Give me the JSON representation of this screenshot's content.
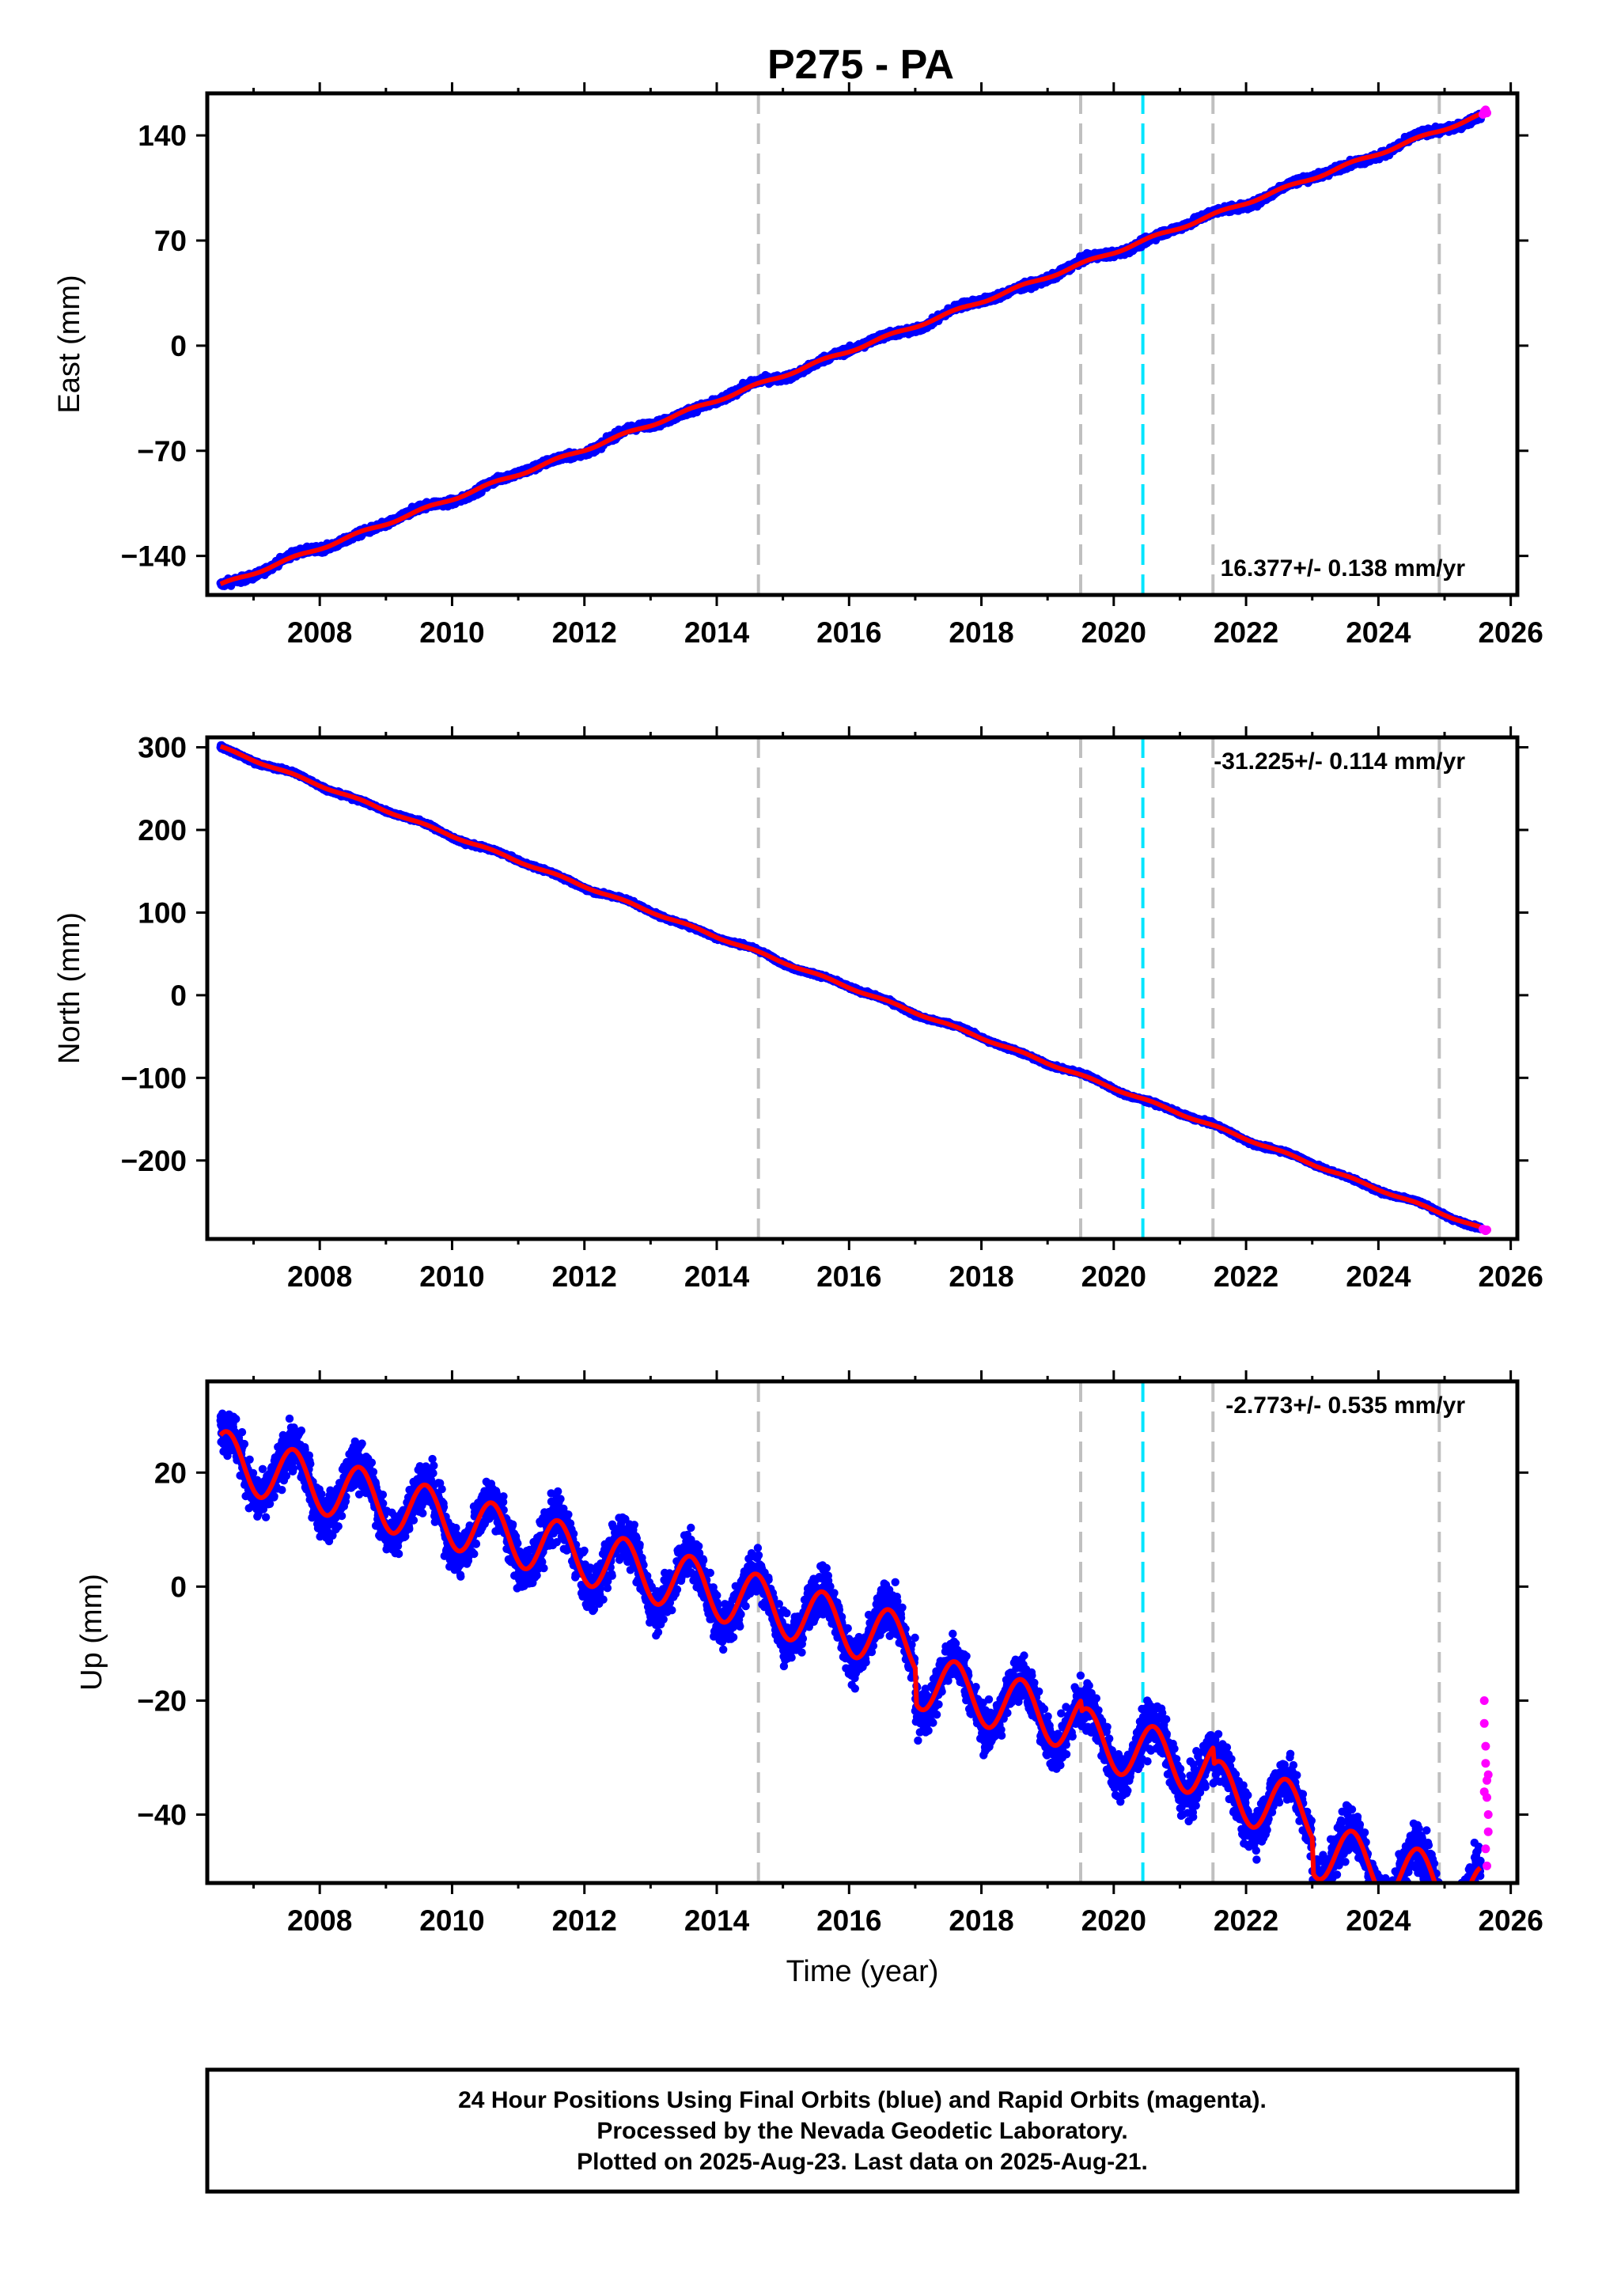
{
  "title": "P275 - PA",
  "footer": {
    "lines": [
      "24 Hour Positions Using Final Orbits (blue) and Rapid Orbits (magenta).",
      "Processed by the Nevada Geodetic Laboratory.",
      "Plotted on 2025-Aug-23. Last data on 2025-Aug-21."
    ]
  },
  "colors": {
    "final_orbits": "#0000ff",
    "rapid_orbits": "#ff00ff",
    "model_fit": "#ff0000",
    "event_line": "#c0c0c0",
    "antenna_change_line": "#00e5ff",
    "frame": "#000000"
  },
  "chart_data": [
    {
      "type": "scatter",
      "panel": "east",
      "ylabel": "East (mm)",
      "xlabel": "",
      "xlim": [
        2006.3,
        2026.1
      ],
      "ylim": [
        -166,
        168
      ],
      "yticks": [
        -140,
        -70,
        0,
        70,
        140
      ],
      "xticks": [
        2008,
        2010,
        2012,
        2014,
        2016,
        2018,
        2020,
        2022,
        2024,
        2026
      ],
      "rate_text": "16.377+/- 0.138 mm/yr",
      "rate_position": "bottom-right",
      "event_lines_gray": [
        2014.63,
        2019.5,
        2021.5,
        2024.92
      ],
      "event_lines_cyan": [
        2020.44
      ],
      "series": [
        {
          "name": "Final Orbits (blue)",
          "kind": "points",
          "trend": {
            "x0": 2006.5,
            "y0": -159.5,
            "x1": 2025.55,
            "y1": 153.5
          },
          "scatter_mm": 2.2,
          "seasonal_amp": 1.2
        },
        {
          "name": "Rapid Orbits (magenta)",
          "kind": "points",
          "x": [
            2025.58,
            2025.6,
            2025.62,
            2025.64
          ],
          "y": [
            154,
            156,
            157,
            155
          ]
        },
        {
          "name": "model",
          "kind": "line",
          "trend": {
            "x0": 2006.5,
            "y0": -159.5,
            "x1": 2025.55,
            "y1": 153.5
          },
          "seasonal_amp": 1.0
        }
      ]
    },
    {
      "type": "scatter",
      "panel": "north",
      "ylabel": "North (mm)",
      "xlabel": "",
      "xlim": [
        2006.3,
        2026.1
      ],
      "ylim": [
        -295,
        312
      ],
      "yticks": [
        -200,
        -100,
        0,
        100,
        200,
        300
      ],
      "xticks": [
        2008,
        2010,
        2012,
        2014,
        2016,
        2018,
        2020,
        2022,
        2024,
        2026
      ],
      "rate_text": "-31.225+/- 0.114 mm/yr",
      "rate_position": "top-right",
      "event_lines_gray": [
        2014.63,
        2019.5,
        2021.5,
        2024.92
      ],
      "event_lines_cyan": [
        2020.44
      ],
      "series": [
        {
          "name": "Final Orbits (blue)",
          "kind": "points",
          "trend": {
            "x0": 2006.5,
            "y0": 300,
            "x1": 2025.55,
            "y1": -282
          },
          "scatter_mm": 2.0,
          "seasonal_amp": 1.5
        },
        {
          "name": "Rapid Orbits (magenta)",
          "kind": "points",
          "x": [
            2025.58,
            2025.6,
            2025.62,
            2025.64
          ],
          "y": [
            -283,
            -284,
            -285,
            -284
          ]
        },
        {
          "name": "model",
          "kind": "line",
          "trend": {
            "x0": 2006.5,
            "y0": 300,
            "x1": 2025.55,
            "y1": -282
          },
          "seasonal_amp": 1.3
        }
      ]
    },
    {
      "type": "scatter",
      "panel": "up",
      "ylabel": "Up (mm)",
      "xlabel": "Time (year)",
      "xlim": [
        2006.3,
        2026.1
      ],
      "ylim": [
        -52,
        36
      ],
      "yticks": [
        -40,
        -20,
        0,
        20
      ],
      "xticks": [
        2008,
        2010,
        2012,
        2014,
        2016,
        2018,
        2020,
        2022,
        2024,
        2026
      ],
      "rate_text": "-2.773+/- 0.535 mm/yr",
      "rate_position": "top-right",
      "event_lines_gray": [
        2014.63,
        2019.5,
        2021.5,
        2024.92
      ],
      "event_lines_cyan": [
        2020.44
      ],
      "series": [
        {
          "name": "Final Orbits (blue)",
          "kind": "points",
          "trend": {
            "x0": 2006.5,
            "y0": 22.5,
            "x1": 2025.55,
            "y1": -37
          },
          "offsets": [
            [
              2017.0,
              -6
            ],
            [
              2019.5,
              -2
            ],
            [
              2021.5,
              -3
            ],
            [
              2023.0,
              -6
            ]
          ],
          "scatter_mm": 4.0,
          "seasonal_amp": 5.5
        },
        {
          "name": "Rapid Orbits (magenta)",
          "kind": "points",
          "x": [
            2025.6,
            2025.6,
            2025.62,
            2025.62,
            2025.64,
            2025.64,
            2025.66,
            2025.66,
            2025.62,
            2025.64,
            2025.6,
            2025.66
          ],
          "y": [
            -20,
            -24,
            -28,
            -31,
            -34,
            -37,
            -40,
            -43,
            -46,
            -49,
            -36,
            -33
          ]
        },
        {
          "name": "model",
          "kind": "line",
          "trend": {
            "x0": 2006.5,
            "y0": 22.5,
            "x1": 2025.55,
            "y1": -37
          },
          "offsets": [
            [
              2017.0,
              -6
            ],
            [
              2019.5,
              -2
            ],
            [
              2021.5,
              -3
            ],
            [
              2023.0,
              -6
            ]
          ],
          "seasonal_amp": 5.0
        }
      ]
    }
  ]
}
